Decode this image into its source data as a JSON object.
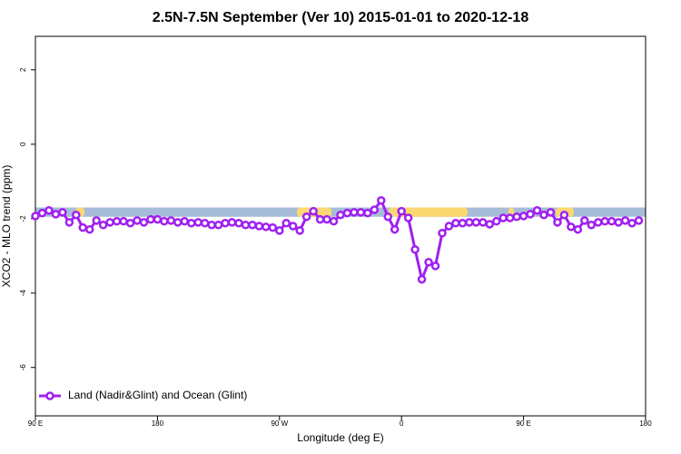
{
  "chart_data": {
    "type": "line",
    "title": "2.5N-7.5N September (Ver 10)   2015-01-01 to 2020-12-18",
    "x_label": "Longitude (deg E)",
    "y_label": "XCO2 - MLO trend (ppm)",
    "x": [
      90,
      95,
      100,
      105,
      110,
      115,
      120,
      125,
      130,
      135,
      140,
      145,
      150,
      155,
      160,
      165,
      170,
      175,
      180,
      185,
      190,
      195,
      200,
      205,
      210,
      215,
      220,
      225,
      230,
      235,
      240,
      245,
      250,
      255,
      260,
      265,
      270,
      275,
      280,
      285,
      290,
      295,
      300,
      305,
      310,
      315,
      320,
      325,
      330,
      335,
      340,
      345,
      350,
      355,
      360,
      365,
      370,
      375,
      380,
      385,
      390,
      395,
      400,
      405,
      410,
      415,
      420,
      425,
      430,
      435,
      440,
      445,
      450,
      455,
      460,
      465,
      470,
      475,
      480,
      485,
      490,
      495,
      500,
      505,
      510,
      515,
      520,
      525,
      530,
      535
    ],
    "series": [
      {
        "name": "Land (Nadir&Glint) and Ocean (Glint)",
        "color": "#a020f0",
        "values": [
          -1.93,
          -1.85,
          -1.78,
          -1.88,
          -1.83,
          -2.1,
          -1.9,
          -2.24,
          -2.29,
          -2.05,
          -2.17,
          -2.1,
          -2.07,
          -2.07,
          -2.12,
          -2.05,
          -2.1,
          -2.02,
          -2.02,
          -2.07,
          -2.05,
          -2.1,
          -2.07,
          -2.12,
          -2.1,
          -2.12,
          -2.17,
          -2.17,
          -2.12,
          -2.1,
          -2.12,
          -2.17,
          -2.17,
          -2.2,
          -2.22,
          -2.24,
          -2.32,
          -2.12,
          -2.2,
          -2.32,
          -1.95,
          -1.8,
          -2.02,
          -2.02,
          -2.07,
          -1.9,
          -1.85,
          -1.83,
          -1.83,
          -1.85,
          -1.76,
          -1.51,
          -1.95,
          -2.29,
          -1.8,
          -1.98,
          -2.83,
          -3.63,
          -3.17,
          -3.27,
          -2.39,
          -2.2,
          -2.12,
          -2.12,
          -2.1,
          -2.1,
          -2.1,
          -2.15,
          -2.07,
          -1.98,
          -1.98,
          -1.95,
          -1.93,
          -1.88,
          -1.78,
          -1.9,
          -1.83,
          -2.1,
          -1.9,
          -2.22,
          -2.29,
          -2.05,
          -2.17,
          -2.1,
          -2.07,
          -2.07,
          -2.1,
          -2.05,
          -2.12,
          -2.05
        ]
      }
    ],
    "xlim": [
      90,
      540
    ],
    "xticks": [
      {
        "value": 90,
        "label": "90 E"
      },
      180,
      {
        "value": 270,
        "label": "90 W"
      },
      {
        "value": 360,
        "label": "0"
      },
      {
        "value": 450,
        "label": "90 E"
      },
      {
        "value": 540,
        "label": "180"
      }
    ],
    "ylim": [
      -7.3,
      2.9
    ],
    "yticks": [
      -6,
      -4,
      -2,
      0,
      2
    ],
    "legend": "bottomleft",
    "band_ylim": [
      -1.7,
      -1.95
    ],
    "ocean_color": "#a7bcd8",
    "land_color": "#fbd872",
    "land_segments": [
      [
        119.5,
        126.2
      ],
      [
        282.9,
        308.3
      ],
      [
        350.5,
        408.8
      ],
      [
        439,
        443
      ],
      [
        473.7,
        487.1
      ]
    ]
  }
}
